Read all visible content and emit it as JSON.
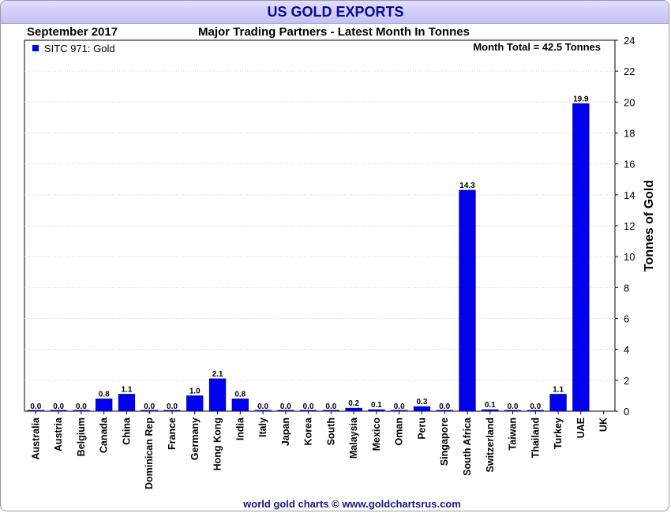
{
  "title": "US GOLD EXPORTS",
  "period": "September 2017",
  "subtitle": "Major Trading Partners - Latest Month In Tonnes",
  "footer": "world gold charts © www.goldchartsrus.com",
  "accent": "#0000ee",
  "chart_data": {
    "type": "bar",
    "title": "Major Trading Partners - Latest Month In Tonnes",
    "ylabel": "Tonnes of Gold",
    "xlabel": "",
    "ylim": [
      0,
      24
    ],
    "yticks": [
      0,
      2,
      4,
      6,
      8,
      10,
      12,
      14,
      16,
      18,
      20,
      22,
      24
    ],
    "legend": {
      "label": "SITC 971: Gold",
      "position": "top-left"
    },
    "annotation": "Month Total = 42.5 Tonnes",
    "grid": true,
    "categories": [
      "Australia",
      "Austria",
      "Belgium",
      "Canada",
      "China",
      "Dominican Rep",
      "France",
      "Germany",
      "Hong Kong",
      "India",
      "Italy",
      "Japan",
      "Korea",
      "South",
      "Malaysia",
      "Mexico",
      "Oman",
      "Peru",
      "Singapore",
      "South Africa",
      "Switzerland",
      "Taiwan",
      "Thailand",
      "Turkey",
      "UAE",
      "UK"
    ],
    "values": [
      0.0,
      0.0,
      0.0,
      0.8,
      1.1,
      0.0,
      0.0,
      1.0,
      2.1,
      0.8,
      0.0,
      0.0,
      0.0,
      0.0,
      0.2,
      0.1,
      0.0,
      0.3,
      0.0,
      14.3,
      0.1,
      0.0,
      0.0,
      1.1,
      19.9,
      null
    ],
    "value_labels": [
      "0.0",
      "0.0",
      "0.0",
      "0.8",
      "1.1",
      "0.0",
      "0.0",
      "1.0",
      "2.1",
      "0.8",
      "0.0",
      "0.0",
      "0.0",
      "0.0",
      "0.2",
      "0.1",
      "0.0",
      "0.3",
      "0.0",
      "14.3",
      "0.1",
      "0.0",
      "0.0",
      "1.1",
      "19.9",
      ""
    ]
  }
}
